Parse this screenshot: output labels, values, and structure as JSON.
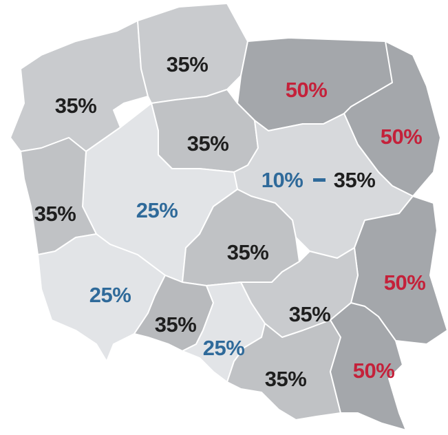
{
  "regions": [
    {
      "label": "35%"
    },
    {
      "label": "35%"
    },
    {
      "label": "50%"
    },
    {
      "label": "50%"
    },
    {
      "label": "35%"
    },
    {
      "label_from": "10%",
      "label_to": "35%"
    },
    {
      "label": "25%"
    },
    {
      "label": "35%"
    },
    {
      "label": "35%"
    },
    {
      "label": "50%"
    },
    {
      "label": "25%"
    },
    {
      "label": "35%"
    },
    {
      "label": "25%"
    },
    {
      "label": "35%"
    },
    {
      "label": "35%"
    },
    {
      "label": "50%"
    }
  ]
}
